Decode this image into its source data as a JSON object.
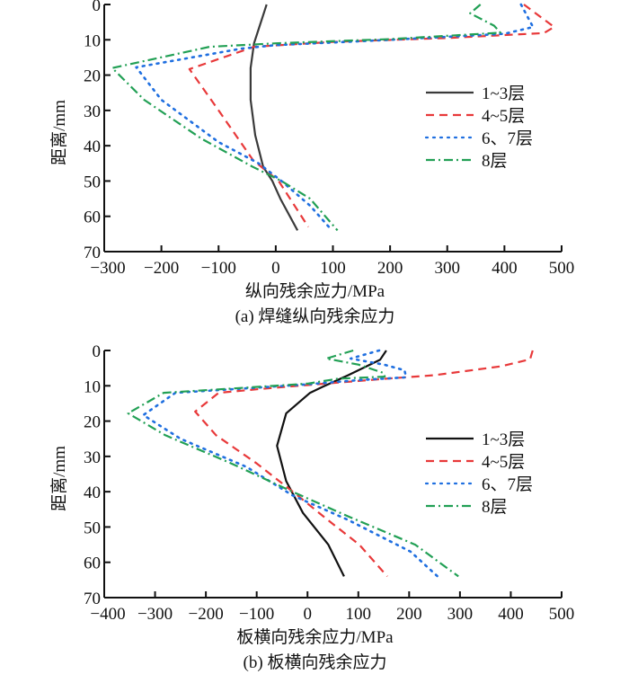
{
  "chart_data": [
    {
      "type": "line",
      "panel": "a",
      "caption": "(a)    焊缝纵向残余应力",
      "xlabel": "纵向残余应力/MPa",
      "ylabel": "距离/mm",
      "xlim": [
        -300,
        500
      ],
      "ylim": [
        0,
        70
      ],
      "y_inverted": true,
      "xticks": [
        -300,
        -200,
        -100,
        0,
        100,
        200,
        300,
        400,
        500
      ],
      "xtick_labels": [
        "−300",
        "−200",
        "−100",
        "0",
        "100",
        "200",
        "300",
        "400",
        "500"
      ],
      "yticks": [
        0,
        10,
        20,
        30,
        40,
        50,
        60,
        70
      ],
      "ytick_labels": [
        "0",
        "10",
        "20",
        "30",
        "40",
        "50",
        "60",
        "70"
      ],
      "legend_position": "right-middle",
      "grid": false,
      "series": [
        {
          "name": "1~3层",
          "color": "#3a3a3a",
          "style": "solid",
          "points": [
            [
              -16,
              0
            ],
            [
              -19,
              1.5
            ],
            [
              -30,
              7
            ],
            [
              -38,
              11
            ],
            [
              -44,
              18
            ],
            [
              -44,
              27
            ],
            [
              -36,
              37
            ],
            [
              -22,
              46
            ],
            [
              -6,
              50
            ],
            [
              8,
              55
            ],
            [
              38,
              64
            ]
          ]
        },
        {
          "name": "4~5层",
          "color": "#e8393a",
          "style": "dashed",
          "points": [
            [
              434,
              0
            ],
            [
              487,
              6.4
            ],
            [
              469,
              8.1
            ],
            [
              300,
              9.5
            ],
            [
              100,
              10.6
            ],
            [
              -38,
              12
            ],
            [
              -151,
              18.3
            ],
            [
              -100,
              30
            ],
            [
              -40,
              44
            ],
            [
              5,
              50
            ],
            [
              57,
              63
            ]
          ]
        },
        {
          "name": "6、7层",
          "color": "#1f6fe0",
          "style": "dotted",
          "points": [
            [
              429,
              0
            ],
            [
              450,
              6.4
            ],
            [
              400,
              8.3
            ],
            [
              200,
              10
            ],
            [
              0,
              11.5
            ],
            [
              -60,
              12.5
            ],
            [
              -244,
              17.8
            ],
            [
              -200,
              27
            ],
            [
              -100,
              39
            ],
            [
              -30,
              45
            ],
            [
              10,
              50
            ],
            [
              60,
              57
            ],
            [
              93,
              63
            ]
          ]
        },
        {
          "name": "8层",
          "color": "#22a055",
          "style": "dashdot",
          "points": [
            [
              358,
              0
            ],
            [
              340,
              2.5
            ],
            [
              382,
              6
            ],
            [
              393,
              8
            ],
            [
              200,
              9.8
            ],
            [
              0,
              11
            ],
            [
              -116,
              12
            ],
            [
              -286,
              18
            ],
            [
              -230,
              27
            ],
            [
              -130,
              38
            ],
            [
              -40,
              46
            ],
            [
              10,
              50
            ],
            [
              60,
              55
            ],
            [
              108,
              64
            ]
          ]
        }
      ]
    },
    {
      "type": "line",
      "panel": "b",
      "caption": "(b)    板横向残余应力",
      "xlabel": "板横向残余应力/MPa",
      "ylabel": "距离/mm",
      "xlim": [
        -400,
        500
      ],
      "ylim": [
        0,
        70
      ],
      "y_inverted": true,
      "xticks": [
        -400,
        -300,
        -200,
        -100,
        0,
        100,
        200,
        300,
        400,
        500
      ],
      "xtick_labels": [
        "−400",
        "−300",
        "−200",
        "−100",
        "0",
        "100",
        "200",
        "300",
        "400",
        "500"
      ],
      "yticks": [
        0,
        10,
        20,
        30,
        40,
        50,
        60,
        70
      ],
      "ytick_labels": [
        "0",
        "10",
        "20",
        "30",
        "40",
        "50",
        "60",
        "70"
      ],
      "legend_position": "right-middle",
      "grid": false,
      "series": [
        {
          "name": "1~3层",
          "color": "#111111",
          "style": "solid",
          "points": [
            [
              155,
              0
            ],
            [
              143,
              2.6
            ],
            [
              80,
              7
            ],
            [
              28,
              10.4
            ],
            [
              5,
              12
            ],
            [
              -42,
              17.8
            ],
            [
              -60,
              27
            ],
            [
              -42,
              37
            ],
            [
              -9,
              46
            ],
            [
              41,
              55
            ],
            [
              72,
              64
            ]
          ]
        },
        {
          "name": "4~5层",
          "color": "#e8393a",
          "style": "dashed",
          "points": [
            [
              443,
              0
            ],
            [
              438,
              2.5
            ],
            [
              380,
              4.5
            ],
            [
              250,
              7
            ],
            [
              155,
              8
            ],
            [
              0,
              9.8
            ],
            [
              -100,
              11
            ],
            [
              -175,
              12
            ],
            [
              -221,
              17.3
            ],
            [
              -180,
              24
            ],
            [
              -100,
              32
            ],
            [
              -20,
              41
            ],
            [
              40,
              48
            ],
            [
              102,
              55
            ],
            [
              157,
              64
            ]
          ]
        },
        {
          "name": "6、7层",
          "color": "#1f6fe0",
          "style": "dotted",
          "points": [
            [
              141,
              0
            ],
            [
              85,
              2.3
            ],
            [
              150,
              4
            ],
            [
              191,
              5.6
            ],
            [
              194,
              7.6
            ],
            [
              100,
              8.4
            ],
            [
              0,
              9.6
            ],
            [
              -150,
              11
            ],
            [
              -260,
              12
            ],
            [
              -323,
              18.3
            ],
            [
              -250,
              25
            ],
            [
              -120,
              33
            ],
            [
              -30,
              41
            ],
            [
              80,
              48
            ],
            [
              203,
              57
            ],
            [
              256,
              64
            ]
          ]
        },
        {
          "name": "8层",
          "color": "#22a055",
          "style": "dashdot",
          "points": [
            [
              90,
              0
            ],
            [
              37,
              2.3
            ],
            [
              100,
              4
            ],
            [
              150,
              6.4
            ],
            [
              152,
              7.4
            ],
            [
              60,
              8
            ],
            [
              0,
              9.4
            ],
            [
              -150,
              10.8
            ],
            [
              -283,
              12
            ],
            [
              -353,
              17.8
            ],
            [
              -280,
              24
            ],
            [
              -150,
              32
            ],
            [
              -30,
              40
            ],
            [
              80,
              47
            ],
            [
              212,
              55
            ],
            [
              297,
              64
            ]
          ]
        }
      ]
    }
  ]
}
